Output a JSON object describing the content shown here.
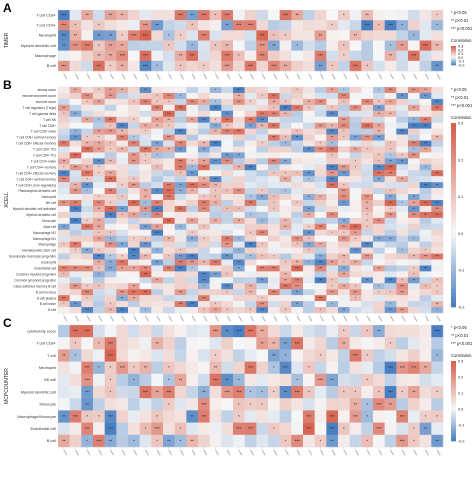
{
  "panels": [
    {
      "letter": "A",
      "side_label": "TIMER",
      "rows": [
        "T cell CD8+",
        "T cell CD4+",
        "Neutrophil",
        "Myeloid dendritic cell",
        "Macrophage",
        "B cell"
      ]
    },
    {
      "letter": "B",
      "side_label": "XCELL",
      "rows": [
        "stroma score",
        "microenvironment score",
        "immune score",
        "T cell regulatory (Tregs)",
        "T cell gamma delta",
        "T cell NK",
        "T cell CD8+",
        "T cell CD8+ naive",
        "T cell CD8+ central memory",
        "T cell CD8+ effector memory",
        "T cell CD4+ Th2",
        "T cell CD4+ Th1",
        "T cell CD4+ naive",
        "T cell CD4+ memory",
        "T cell CD4+ effector memory",
        "T cell CD4+ central memory",
        "T cell CD4+ (non-regulatory)",
        "Plasmacytoid dendritic cell",
        "Neutrophil",
        "NK cell",
        "Myeloid dendritic cell activated",
        "Myeloid dendritic cell",
        "Monocyte",
        "Mast cell",
        "Macrophage M2",
        "Macrophage M1",
        "Macrophage",
        "Hematopoietic stem cell",
        "Granulocyte-monocyte progenitor",
        "Eosinophil",
        "Endothelial cell",
        "Common myeloid progenitor",
        "Common lymphoid progenitor",
        "Class-switched memory B cell",
        "B cell memory",
        "B cell plasma",
        "B cell naive",
        "B cell"
      ]
    },
    {
      "letter": "C",
      "side_label": "MCPCOUNTER",
      "rows": [
        "cytotoxicity score",
        "T cell CD8+",
        "T cell",
        "Neutrophil",
        "NK cell",
        "Myeloid dendritic cell",
        "Monocyte",
        "Macrophage/Monocyte",
        "Endothelial cell",
        "B cell"
      ]
    }
  ],
  "legend": {
    "sig_labels": [
      "* p<0.05",
      "** p<0.01",
      "*** p<0.001"
    ],
    "title": "Correlation",
    "ticks": [
      "0.3",
      "0.2",
      "0.1",
      "0.0",
      "-0.1",
      "-0.2"
    ]
  },
  "colors": {
    "positive": "#d6604d",
    "negative": "#4a7fc1",
    "neutral": "#f7f7f7"
  },
  "chart_data": [
    {
      "type": "heatmap",
      "panel": "A",
      "note": "Correlation values per column (cancer type) are not legible in the source; column tick labels unreadable. Colour range shown by legend: -0.2 to 0.3.",
      "legend_range": [
        -0.2,
        0.3
      ],
      "columns": 33
    },
    {
      "type": "heatmap",
      "panel": "B",
      "legend_range": [
        -0.2,
        0.3
      ],
      "columns": 33
    },
    {
      "type": "heatmap",
      "panel": "C",
      "legend_range": [
        -0.2,
        0.3
      ],
      "columns": 33
    }
  ]
}
